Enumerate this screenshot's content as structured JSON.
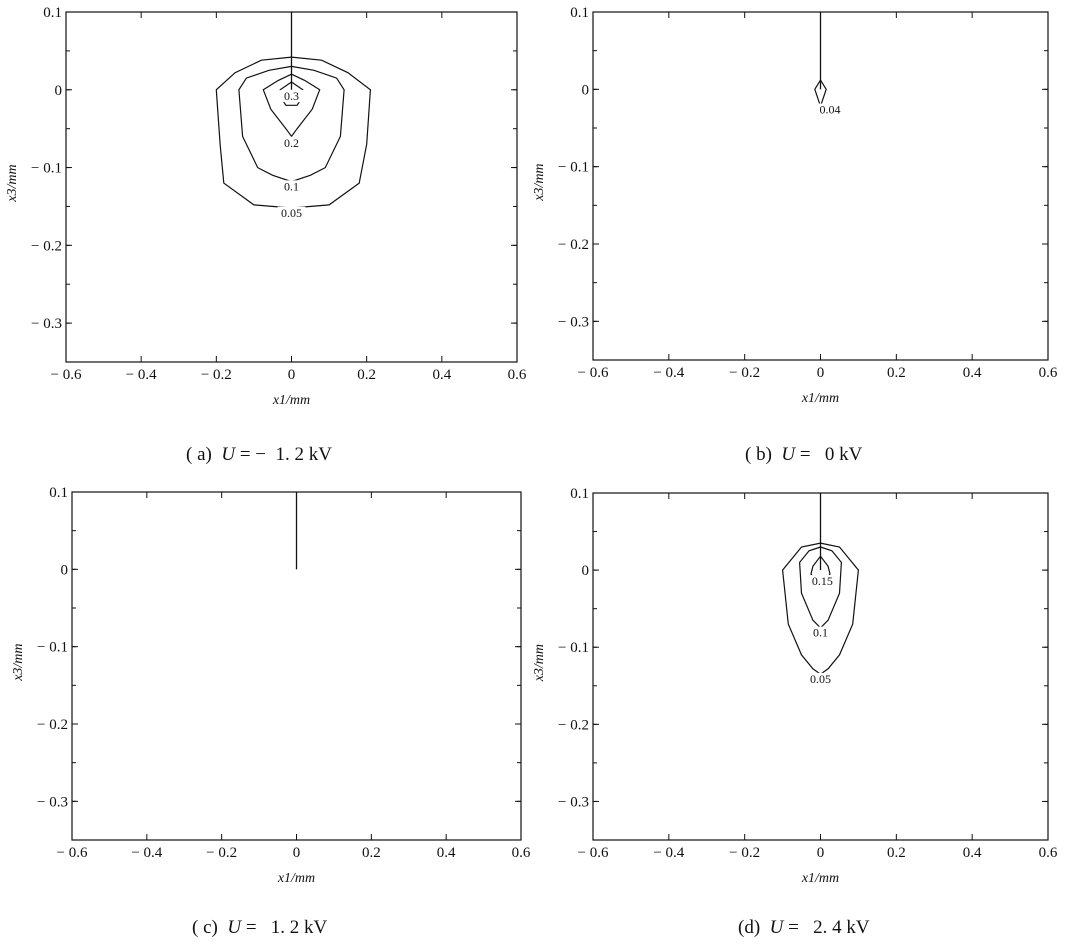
{
  "chart_data": [
    {
      "type": "contour",
      "panel": "a",
      "caption": {
        "prefix": "( a)",
        "var": "U",
        "rest": " = −  1. 2 kV"
      },
      "xlabel": "x1/mm",
      "ylabel": "x3/mm",
      "xlim": [
        -0.6,
        0.6
      ],
      "ylim": [
        -0.35,
        0.1
      ],
      "xticks": [
        -0.6,
        -0.4,
        -0.2,
        0,
        0.2,
        0.4,
        0.6
      ],
      "xtick_labels": [
        "− 0.6",
        "− 0.4",
        "− 0.2",
        "0",
        "0.2",
        "0.4",
        "0.6"
      ],
      "yticks": [
        0.1,
        0,
        -0.1,
        -0.2,
        -0.3
      ],
      "ytick_labels": [
        "0.1",
        "0",
        "− 0.1",
        "− 0.2",
        "− 0.3"
      ],
      "crack": {
        "x": 0,
        "y_top": 0.1,
        "y_tip": 0
      },
      "contours": [
        {
          "label": "0.3",
          "label_at": [
            0,
            -0.012
          ],
          "points": [
            [
              0,
              0.01
            ],
            [
              -0.03,
              0.0
            ],
            [
              -0.035,
              -0.005
            ],
            [
              -0.015,
              -0.02
            ],
            [
              0.015,
              -0.02
            ],
            [
              0.035,
              -0.005
            ],
            [
              0.03,
              0.0
            ],
            [
              0,
              0.01
            ]
          ]
        },
        {
          "label": "0.2",
          "label_at": [
            0,
            -0.072
          ],
          "points": [
            [
              0,
              0.02
            ],
            [
              -0.035,
              0.012
            ],
            [
              -0.075,
              0.0
            ],
            [
              -0.055,
              -0.025
            ],
            [
              -0.015,
              -0.05
            ],
            [
              0,
              -0.06
            ],
            [
              0.015,
              -0.05
            ],
            [
              0.055,
              -0.025
            ],
            [
              0.075,
              0.0
            ],
            [
              0.035,
              0.012
            ],
            [
              0,
              0.02
            ]
          ]
        },
        {
          "label": "0.1",
          "label_at": [
            0,
            -0.128
          ],
          "points": [
            [
              0,
              0.03
            ],
            [
              -0.06,
              0.025
            ],
            [
              -0.12,
              0.015
            ],
            [
              -0.14,
              0.0
            ],
            [
              -0.13,
              -0.06
            ],
            [
              -0.09,
              -0.1
            ],
            [
              -0.05,
              -0.11
            ],
            [
              0,
              -0.118
            ],
            [
              0.05,
              -0.11
            ],
            [
              0.09,
              -0.1
            ],
            [
              0.13,
              -0.06
            ],
            [
              0.14,
              0.0
            ],
            [
              0.12,
              0.015
            ],
            [
              0.06,
              0.025
            ],
            [
              0,
              0.03
            ]
          ]
        },
        {
          "label": "0.05",
          "label_at": [
            0,
            -0.162
          ],
          "points": [
            [
              0,
              0.042
            ],
            [
              -0.08,
              0.038
            ],
            [
              -0.15,
              0.022
            ],
            [
              -0.2,
              0.0
            ],
            [
              -0.19,
              -0.07
            ],
            [
              -0.18,
              -0.12
            ],
            [
              -0.1,
              -0.148
            ],
            [
              0,
              -0.152
            ],
            [
              0.1,
              -0.148
            ],
            [
              0.18,
              -0.12
            ],
            [
              0.2,
              -0.07
            ],
            [
              0.21,
              0.0
            ],
            [
              0.15,
              0.022
            ],
            [
              0.08,
              0.038
            ],
            [
              0,
              0.042
            ]
          ]
        }
      ]
    },
    {
      "type": "contour",
      "panel": "b",
      "caption": {
        "prefix": "( b)",
        "var": "U",
        "rest": " =   0 kV"
      },
      "xlabel": "x1/mm",
      "ylabel": "x3/mm",
      "xlim": [
        -0.6,
        0.6
      ],
      "ylim": [
        -0.35,
        0.1
      ],
      "xticks": [
        -0.6,
        -0.4,
        -0.2,
        0,
        0.2,
        0.4,
        0.6
      ],
      "xtick_labels": [
        "− 0.6",
        "− 0.4",
        "− 0.2",
        "0",
        "0.2",
        "0.4",
        "0.6"
      ],
      "yticks": [
        0.1,
        0,
        -0.1,
        -0.2,
        -0.3
      ],
      "ytick_labels": [
        "0.1",
        "0",
        "− 0.1",
        "− 0.2",
        "− 0.3"
      ],
      "crack": {
        "x": 0,
        "y_top": 0.1,
        "y_tip": 0
      },
      "contours": [
        {
          "label": "0.04",
          "label_at": [
            0.025,
            -0.03
          ],
          "points": [
            [
              0,
              0.012
            ],
            [
              -0.015,
              0.0
            ],
            [
              0,
              -0.022
            ],
            [
              0.015,
              0.0
            ],
            [
              0,
              0.012
            ]
          ]
        }
      ]
    },
    {
      "type": "contour",
      "panel": "c",
      "caption": {
        "prefix": "( c)",
        "var": "U",
        "rest": " =   1. 2 kV"
      },
      "xlabel": "x1/mm",
      "ylabel": "x3/mm",
      "xlim": [
        -0.6,
        0.6
      ],
      "ylim": [
        -0.35,
        0.1
      ],
      "xticks": [
        -0.6,
        -0.4,
        -0.2,
        0,
        0.2,
        0.4,
        0.6
      ],
      "xtick_labels": [
        "− 0.6",
        "− 0.4",
        "− 0.2",
        "0",
        "0.2",
        "0.4",
        "0.6"
      ],
      "yticks": [
        0.1,
        0,
        -0.1,
        -0.2,
        -0.3
      ],
      "ytick_labels": [
        "0.1",
        "0",
        "− 0.1",
        "− 0.2",
        "− 0.3"
      ],
      "crack": {
        "x": 0,
        "y_top": 0.1,
        "y_tip": 0
      },
      "contours": []
    },
    {
      "type": "contour",
      "panel": "d",
      "caption": {
        "prefix": "(d)",
        "var": "U",
        "rest": " =   2. 4 kV"
      },
      "xlabel": "x1/mm",
      "ylabel": "x3/mm",
      "xlim": [
        -0.6,
        0.6
      ],
      "ylim": [
        -0.35,
        0.1
      ],
      "xticks": [
        -0.6,
        -0.4,
        -0.2,
        0,
        0.2,
        0.4,
        0.6
      ],
      "xtick_labels": [
        "− 0.6",
        "− 0.4",
        "− 0.2",
        "0",
        "0.2",
        "0.4",
        "0.6"
      ],
      "yticks": [
        0.1,
        0,
        -0.1,
        -0.2,
        -0.3
      ],
      "ytick_labels": [
        "0.1",
        "0",
        "− 0.1",
        "− 0.2",
        "− 0.3"
      ],
      "crack": {
        "x": 0,
        "y_top": 0.1,
        "y_tip": 0
      },
      "contours": [
        {
          "label": "0.15",
          "label_at": [
            0.005,
            -0.018
          ],
          "points": [
            [
              0,
              0.018
            ],
            [
              -0.02,
              0.005
            ],
            [
              -0.025,
              -0.005
            ],
            [
              -0.01,
              -0.015
            ],
            [
              0.01,
              -0.015
            ],
            [
              0.025,
              -0.005
            ],
            [
              0.02,
              0.005
            ],
            [
              0,
              0.018
            ]
          ]
        },
        {
          "label": "0.1",
          "label_at": [
            0,
            -0.085
          ],
          "points": [
            [
              0,
              0.03
            ],
            [
              -0.03,
              0.025
            ],
            [
              -0.055,
              0.01
            ],
            [
              -0.05,
              -0.03
            ],
            [
              -0.02,
              -0.065
            ],
            [
              0,
              -0.075
            ],
            [
              0.02,
              -0.065
            ],
            [
              0.05,
              -0.03
            ],
            [
              0.055,
              0.01
            ],
            [
              0.03,
              0.025
            ],
            [
              0,
              0.03
            ]
          ]
        },
        {
          "label": "0.05",
          "label_at": [
            0,
            -0.145
          ],
          "points": [
            [
              0,
              0.035
            ],
            [
              -0.05,
              0.03
            ],
            [
              -0.1,
              0.0
            ],
            [
              -0.085,
              -0.07
            ],
            [
              -0.05,
              -0.11
            ],
            [
              -0.02,
              -0.128
            ],
            [
              0,
              -0.135
            ],
            [
              0.02,
              -0.128
            ],
            [
              0.05,
              -0.11
            ],
            [
              0.085,
              -0.07
            ],
            [
              0.1,
              0.0
            ],
            [
              0.05,
              0.03
            ],
            [
              0,
              0.035
            ]
          ]
        }
      ]
    }
  ]
}
